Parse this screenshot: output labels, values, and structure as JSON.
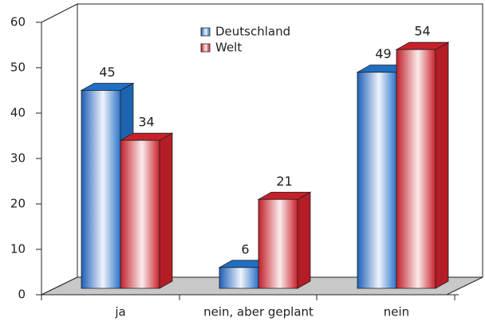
{
  "chart_data": {
    "type": "bar3d",
    "categories": [
      "ja",
      "nein, aber geplant",
      "nein"
    ],
    "series": [
      {
        "name": "Deutschland",
        "color": "#1f6fc4",
        "values": [
          45,
          6,
          49
        ]
      },
      {
        "name": "Welt",
        "color": "#c8202a",
        "values": [
          34,
          21,
          54
        ]
      }
    ],
    "ylim": [
      0,
      60
    ],
    "yticks": [
      0,
      10,
      20,
      30,
      40,
      50,
      60
    ]
  }
}
